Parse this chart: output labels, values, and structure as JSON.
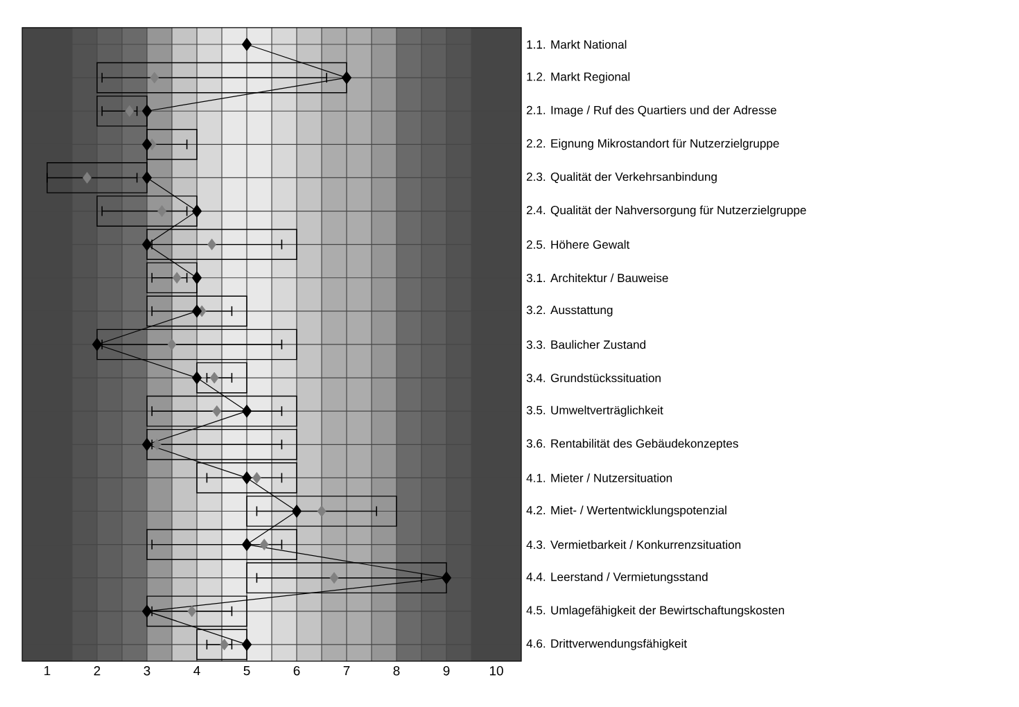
{
  "chart_data": {
    "type": "bar",
    "orientation": "horizontal",
    "categories": [
      "1.1. Markt National",
      "1.2. Markt Regional",
      "2.1. Image / Ruf des Quartiers und der Adresse",
      "2.2. Eignung Mikrostandort für Nutzerzielgruppe",
      "2.3. Qualität der Verkehrsanbindung",
      "2.4. Qualität der Nahversorgung für Nutzerzielgruppe",
      "2.5. Höhere Gewalt",
      "3.1. Architektur / Bauweise",
      "3.2. Ausstattung",
      "3.3. Baulicher Zustand",
      "3.4. Grundstückssituation",
      "3.5. Umweltverträglichkeit",
      "3.6. Rentabilität des Gebäudekonzeptes",
      "4.1. Mieter / Nutzersituation",
      "4.2. Miet- / Wertentwicklungspotenzial",
      "4.3. Vermietbarkeit / Konkurrenzsituation",
      "4.4. Leerstand / Vermietungsstand",
      "4.5. Umlagefähigkeit der Bewirtschaftungskosten",
      "4.6. Drittverwendungsfähigkeit"
    ],
    "xlim": [
      0.5,
      10.5
    ],
    "xticks": [
      1,
      2,
      3,
      4,
      5,
      6,
      7,
      8,
      9,
      10
    ],
    "grid": true,
    "bands": [
      {
        "axis": "x",
        "from": 0.5,
        "to": 1,
        "color": "#464646"
      },
      {
        "axis": "x",
        "from": 1,
        "to": 1.5,
        "color": "#464646"
      },
      {
        "axis": "x",
        "from": 1.5,
        "to": 2,
        "color": "#525252"
      },
      {
        "axis": "x",
        "from": 2,
        "to": 2.5,
        "color": "#5e5e5e"
      },
      {
        "axis": "x",
        "from": 2.5,
        "to": 3,
        "color": "#6a6a6a"
      },
      {
        "axis": "x",
        "from": 3,
        "to": 3.5,
        "color": "#969696"
      },
      {
        "axis": "x",
        "from": 3.5,
        "to": 4,
        "color": "#c4c4c4"
      },
      {
        "axis": "x",
        "from": 4,
        "to": 4.5,
        "color": "#d8d8d8"
      },
      {
        "axis": "x",
        "from": 4.5,
        "to": 5,
        "color": "#e8e8e8"
      },
      {
        "axis": "x",
        "from": 5,
        "to": 5.5,
        "color": "#e8e8e8"
      },
      {
        "axis": "x",
        "from": 5.5,
        "to": 6,
        "color": "#d8d8d8"
      },
      {
        "axis": "x",
        "from": 6,
        "to": 6.5,
        "color": "#c4c4c4"
      },
      {
        "axis": "x",
        "from": 6.5,
        "to": 7,
        "color": "#acacac"
      },
      {
        "axis": "x",
        "from": 7,
        "to": 7.5,
        "color": "#acacac"
      },
      {
        "axis": "x",
        "from": 7.5,
        "to": 8,
        "color": "#969696"
      },
      {
        "axis": "x",
        "from": 8,
        "to": 8.5,
        "color": "#6a6a6a"
      },
      {
        "axis": "x",
        "from": 8.5,
        "to": 9,
        "color": "#5e5e5e"
      },
      {
        "axis": "x",
        "from": 9,
        "to": 9.5,
        "color": "#525252"
      },
      {
        "axis": "x",
        "from": 9.5,
        "to": 10,
        "color": "#464646"
      },
      {
        "axis": "x",
        "from": 10,
        "to": 10.5,
        "color": "#464646"
      }
    ],
    "series": [
      {
        "color": "#000000",
        "base": [
          null,
          2,
          2,
          3,
          1,
          2,
          3,
          3,
          3,
          2,
          4,
          3,
          3,
          4,
          5,
          3,
          5,
          3,
          4
        ],
        "values": [
          null,
          5,
          1,
          1,
          2,
          2,
          3,
          1,
          2,
          4,
          1,
          3,
          3,
          2,
          3,
          3,
          4,
          2,
          1
        ]
      },
      {
        "type": "scatter",
        "color": "#808080",
        "marker": "diamond",
        "values": [
          null,
          3.15,
          2.65,
          3.1,
          1.8,
          3.3,
          4.3,
          3.6,
          4.1,
          3.5,
          4.35,
          4.4,
          3.2,
          5.2,
          6.5,
          5.35,
          6.75,
          3.9,
          4.55
        ],
        "errors": [
          null,
          [
            2.1,
            6.6
          ],
          [
            2.1,
            2.8
          ],
          [
            3.0,
            3.8
          ],
          [
            1.0,
            2.8
          ],
          [
            2.1,
            3.8
          ],
          [
            3.1,
            5.7
          ],
          [
            3.1,
            3.8
          ],
          [
            3.1,
            4.7
          ],
          [
            2.1,
            5.7
          ],
          [
            4.2,
            4.7
          ],
          [
            3.1,
            5.7
          ],
          [
            3.1,
            5.7
          ],
          [
            4.2,
            5.7
          ],
          [
            5.2,
            7.6
          ],
          [
            3.1,
            5.7
          ],
          [
            5.2,
            8.5
          ],
          [
            3.1,
            4.7
          ],
          [
            4.2,
            4.7
          ]
        ]
      },
      {
        "type": "line",
        "color": "#000000",
        "marker": "diamond",
        "values": [
          5,
          7,
          3,
          3,
          3,
          4,
          3,
          4,
          4,
          2,
          4,
          5,
          3,
          5,
          6,
          5,
          9,
          3,
          5
        ]
      }
    ]
  }
}
